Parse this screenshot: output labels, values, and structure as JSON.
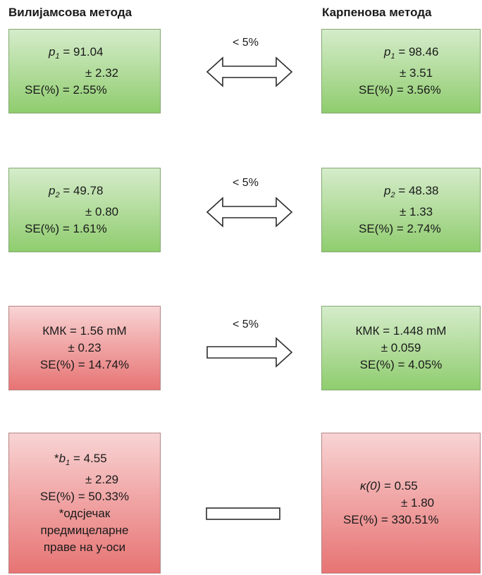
{
  "headings": {
    "left": "Вилијамсова метода",
    "right": "Карпенова метода"
  },
  "rows": [
    {
      "connector_label": "< 5%",
      "left": {
        "status": "good",
        "var": "p",
        "sub": "1",
        "value": " = 91.04",
        "err": "± 2.32",
        "se": "SE(%) = 2.55%"
      },
      "right": {
        "status": "good",
        "var": "p",
        "sub": "1",
        "value": " = 98.46",
        "err": "± 3.51",
        "se": "SE(%) = 3.56%"
      }
    },
    {
      "connector_label": "< 5%",
      "left": {
        "status": "good",
        "var": "p",
        "sub": "2",
        "value": " = 49.78",
        "err": "± 0.80",
        "se": "SE(%) = 1.61%"
      },
      "right": {
        "status": "good",
        "var": "p",
        "sub": "2",
        "value": " = 48.38",
        "err": "± 1.33",
        "se": "SE(%) = 2.74%"
      }
    },
    {
      "connector_label": "< 5%",
      "left": {
        "status": "bad",
        "line1": "КМК = 1.56 mM",
        "err": "± 0.23",
        "se": "SE(%) = 14.74%"
      },
      "right": {
        "status": "good",
        "line1": "КМК = 1.448 mM",
        "err": "± 0.059",
        "se": "SE(%) = 4.05%"
      }
    },
    {
      "left": {
        "status": "bad",
        "prefix": "*",
        "var": "b",
        "sub": "1",
        "value": " = 4.55",
        "err": "± 2.29",
        "se": "SE(%) = 50.33%",
        "note": [
          "*одсјечак",
          "предмицеларне",
          "праве на у-оси"
        ]
      },
      "right": {
        "status": "bad",
        "var": "κ(0)",
        "value": " = 0.55",
        "err": "± 1.80",
        "se": "SE(%) = 330.51%"
      }
    }
  ],
  "colors": {
    "good": "#b6dea1",
    "bad": "#f1a7a7",
    "arrow_stroke": "#2b2b2b"
  }
}
